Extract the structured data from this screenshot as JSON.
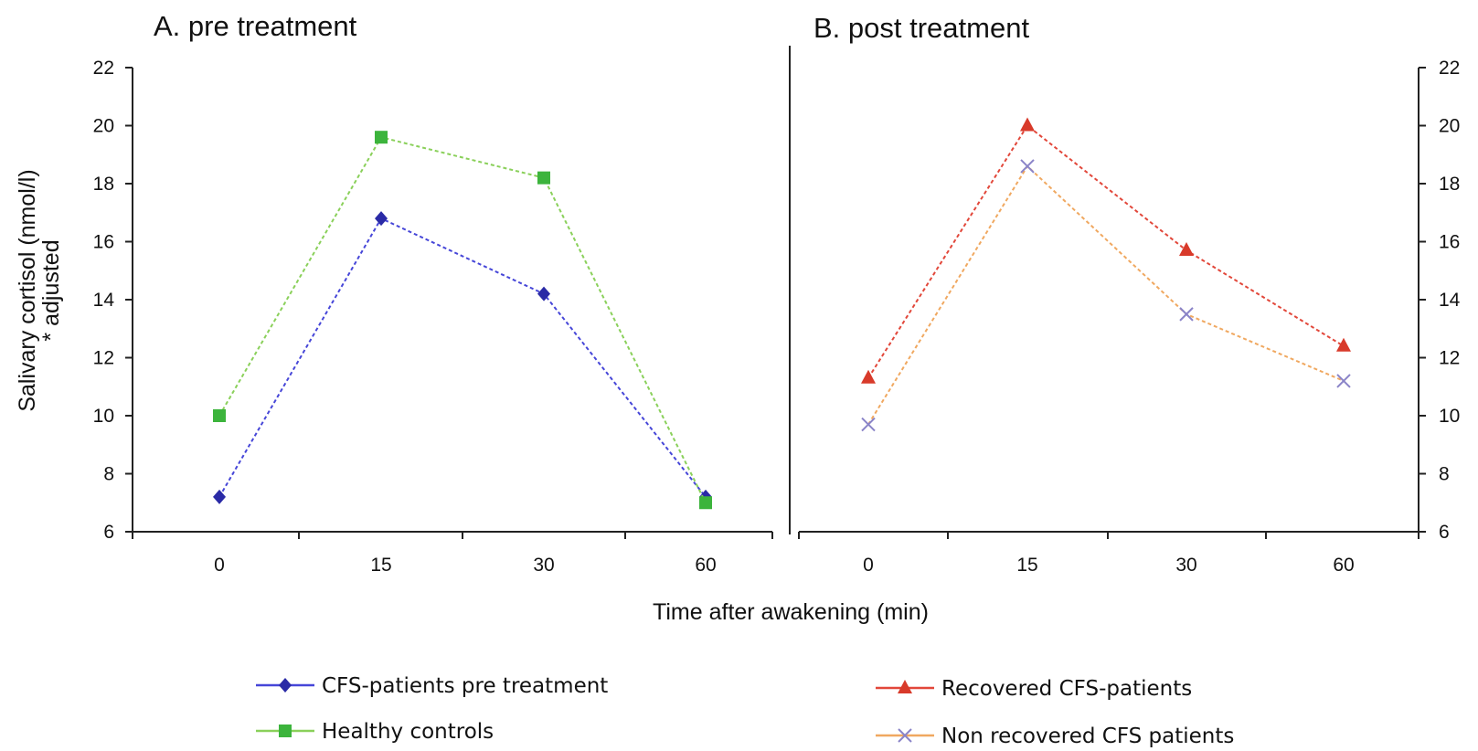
{
  "shared": {
    "ylabel_line1": "Salivary cortisol (nmol/l)",
    "ylabel_line2": "* adjusted",
    "xlabel": "Time after awakening (min)"
  },
  "chart_data": [
    {
      "type": "line",
      "title": "A. pre treatment",
      "categories": [
        "0",
        "15",
        "30",
        "60"
      ],
      "ylim": [
        6,
        22
      ],
      "yticks": [
        6,
        8,
        10,
        12,
        14,
        16,
        18,
        20,
        22
      ],
      "y_axis_side": "left",
      "grid": false,
      "legend": "bottom-left",
      "series": [
        {
          "name": "CFS-patients pre treatment",
          "values": [
            7.2,
            16.8,
            14.2,
            7.2
          ],
          "color": "#2a2aa6",
          "line_color": "#4646d8",
          "marker": "diamond"
        },
        {
          "name": "Healthy controls",
          "values": [
            10.0,
            19.6,
            18.2,
            7.0
          ],
          "color": "#3cb43c",
          "line_color": "#8ad05a",
          "marker": "square"
        }
      ]
    },
    {
      "type": "line",
      "title": "B. post treatment",
      "categories": [
        "0",
        "15",
        "30",
        "60"
      ],
      "ylim": [
        6,
        22
      ],
      "yticks": [
        6,
        8,
        10,
        12,
        14,
        16,
        18,
        20,
        22
      ],
      "y_axis_side": "right",
      "grid": false,
      "legend": "bottom-right",
      "series": [
        {
          "name": "Recovered CFS-patients",
          "values": [
            11.3,
            20.0,
            15.7,
            12.4
          ],
          "color": "#d83a2a",
          "line_color": "#e2473a",
          "marker": "triangle"
        },
        {
          "name": "Non recovered CFS patients",
          "values": [
            9.7,
            18.6,
            13.5,
            11.2
          ],
          "color": "#8a84c8",
          "line_color": "#f0a860",
          "marker": "x"
        }
      ]
    }
  ]
}
